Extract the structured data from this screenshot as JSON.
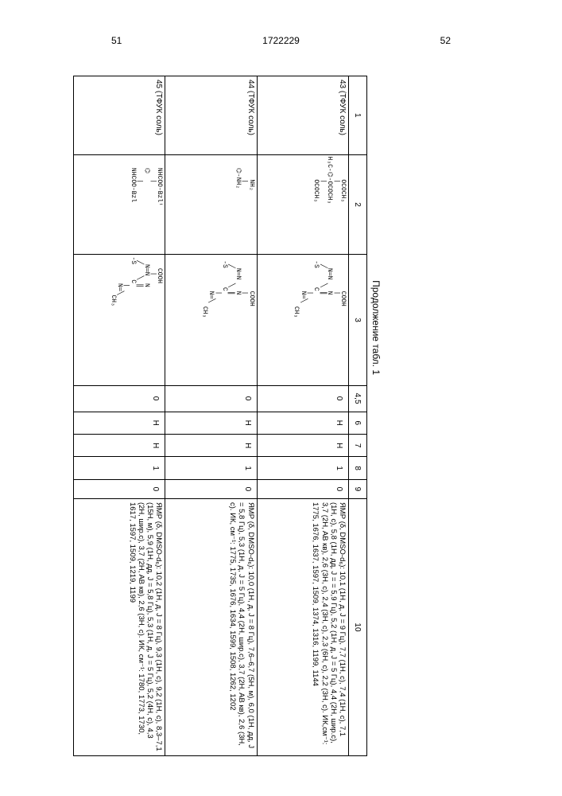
{
  "header": {
    "page_left": "51",
    "doc_number": "1722229",
    "page_right": "52"
  },
  "caption": "Продолжение табл. 1",
  "columns": [
    "1",
    "2",
    "3",
    "4,5",
    "6",
    "7",
    "8",
    "9",
    "10"
  ],
  "rows": [
    {
      "c1": "43 (ТФУК соль)",
      "c2": "      OCOCH₃\n      |\nH₃C-⌬-OCOCH₃\n      |\n      OCOCH₃",
      "c3": "         COOH\n         |\n   N═N   N\n  ╱    ╲ ║\n -S     C\n         |\n         N═╲\n             CH₃",
      "c45": "0",
      "c6": "H",
      "c7": "H",
      "c8": "1",
      "c9": "0",
      "c10": "ЯМР (δ, DMSO-d₆): 10,1 (1H, д, J = 9 Гц), 7,7 (1H, с), 7,4 (1H, с), 7,1 (1H, с), 5,8 (1H, дд, J = = 5,9 Гц), 5,2 (1H, д, J = 5 Гц), 4,4 (2H, шир.с), 3,7 (2H, AB кв), 2,6 (3H, с), 2,4 (3H, с), 2,3 (6H, с), 2,2 (3H, с).\nИК,см⁻¹: 1775, 1676, 1637, 1597, 1509, 1374, 1316, 1199, 1144"
    },
    {
      "c1": "44 (ТФУК соль)",
      "c2": "      NH₂\n      |\n   ⌬-NH₂\n      ",
      "c3": "         COOH\n         |\n   N═N   N\n  ╱    ╲ ║\n -S     C\n         |\n         N═╲\n             CH₃",
      "c45": "0",
      "c6": "H",
      "c7": "H",
      "c8": "1",
      "c9": "0",
      "c10": "ЯМР (δ, DMSO-d₆): 10,0 (1H, д, J = 8 Гц), 7,6–6,7 (5H, м), 6,0 (1H, дд, J = 5,8 Гц), 5,3 (1H, д, J = 5 Гц), 4,4 (2H, шир.с), 3,7 (2H, AB кв), 2,6 (3H, с).\nИК, см⁻¹: 1775, 1735, 1676, 1634, 1599, 1508, 1262, 1202"
    },
    {
      "c1": "45 (ТФУК соль)",
      "c2": "   NHCOO-Bzlᵗ\n      |\n   ⌬\n      |\n   NHCOO-Bzl",
      "c3": "   COOH\n    |\n  N═N  N\n ╱   ╲ ║\n-S    C\n       |\n       N═╲\n          CH₃",
      "c45": "0",
      "c6": "H",
      "c7": "H",
      "c8": "1",
      "c9": "0",
      "c10": "ЯМР (δ, DMSO-d₆): 10,2 (1H, д, J = 8 Гц), 9,3 (1H, с), 9,2 (1H, с), 8,3–7,1 (15H, м), 5,9 (1H, дд, J = 5,8 Гц), 5,3 (1H, д, J = 5 Гц), 5,2 (4H, с), 4,3 (2H, шир.с), 3,7 (2H, AB кв), 2,6 (3H, с).\nИК, см⁻¹: 1780, 1773, 1730, 1617, 1597, 1509, 1219, 1199"
    }
  ]
}
